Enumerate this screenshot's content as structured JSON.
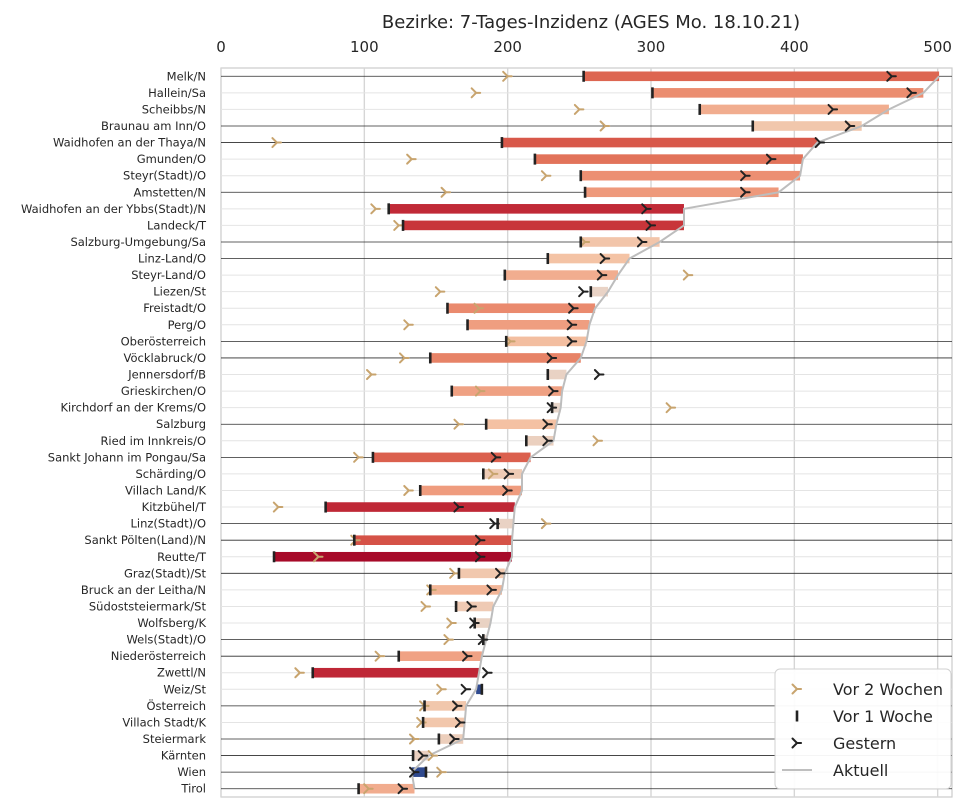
{
  "chart_data": {
    "type": "bar",
    "title": "Bezirke: 7-Tages-Inzidenz (AGES Mo. 18.10.21)",
    "xlim": [
      0,
      510
    ],
    "xticks": [
      0,
      100,
      200,
      300,
      400,
      500
    ],
    "grid": true,
    "legend_position": "bottom-right",
    "legend": [
      {
        "key": "two_weeks",
        "label": "Vor 2 Wochen",
        "color": "#c8a46e"
      },
      {
        "key": "one_week",
        "label": "Vor 1 Woche",
        "color": "#222222"
      },
      {
        "key": "yesterday",
        "label": "Gestern",
        "color": "#222222"
      },
      {
        "key": "current",
        "label": "Aktuell",
        "color": "#bfbfbf"
      }
    ],
    "rows": [
      {
        "name": "Melk/N",
        "current": 501,
        "one_week": 253,
        "yesterday": 468,
        "two_weeks": 200,
        "sep": true
      },
      {
        "name": "Hallein/Sa",
        "current": 490,
        "one_week": 301,
        "yesterday": 482,
        "two_weeks": 178,
        "sep": false
      },
      {
        "name": "Scheibbs/N",
        "current": 466,
        "one_week": 334,
        "yesterday": 427,
        "two_weeks": 250,
        "sep": false
      },
      {
        "name": "Braunau am Inn/O",
        "current": 447,
        "one_week": 371,
        "yesterday": 439,
        "two_weeks": 268,
        "sep": true
      },
      {
        "name": "Waidhofen an der Thaya/N",
        "current": 416,
        "one_week": 196,
        "yesterday": 418,
        "two_weeks": 39,
        "sep": true
      },
      {
        "name": "Gmunden/O",
        "current": 406,
        "one_week": 219,
        "yesterday": 384,
        "two_weeks": 133,
        "sep": false
      },
      {
        "name": "Steyr(Stadt)/O",
        "current": 404,
        "one_week": 251,
        "yesterday": 366,
        "two_weeks": 227,
        "sep": false
      },
      {
        "name": "Amstetten/N",
        "current": 389,
        "one_week": 254,
        "yesterday": 366,
        "two_weeks": 157,
        "sep": true
      },
      {
        "name": "Waidhofen an der Ybbs(Stadt)/N",
        "current": 323,
        "one_week": 117,
        "yesterday": 297,
        "two_weeks": 108,
        "sep": false
      },
      {
        "name": "Landeck/T",
        "current": 323,
        "one_week": 127,
        "yesterday": 300,
        "two_weeks": 124,
        "sep": false
      },
      {
        "name": "Salzburg-Umgebung/Sa",
        "current": 306,
        "one_week": 251,
        "yesterday": 294,
        "two_weeks": 254,
        "sep": true
      },
      {
        "name": "Linz-Land/O",
        "current": 285,
        "one_week": 228,
        "yesterday": 268,
        "two_weeks": 268,
        "sep": true
      },
      {
        "name": "Steyr-Land/O",
        "current": 277,
        "one_week": 198,
        "yesterday": 266,
        "two_weeks": 326,
        "sep": false
      },
      {
        "name": "Liezen/St",
        "current": 270,
        "one_week": 258,
        "yesterday": 253,
        "two_weeks": 153,
        "sep": false
      },
      {
        "name": "Freistadt/O",
        "current": 261,
        "one_week": 158,
        "yesterday": 246,
        "two_weeks": 180,
        "sep": false
      },
      {
        "name": "Perg/O",
        "current": 257,
        "one_week": 172,
        "yesterday": 245,
        "two_weeks": 131,
        "sep": false
      },
      {
        "name": "Oberösterreich",
        "current": 255,
        "one_week": 199,
        "yesterday": 245,
        "two_weeks": 202,
        "sep": true
      },
      {
        "name": "Vöcklabruck/O",
        "current": 251,
        "one_week": 146,
        "yesterday": 231,
        "two_weeks": 128,
        "sep": true
      },
      {
        "name": "Jennersdorf/B",
        "current": 241,
        "one_week": 228,
        "yesterday": 264,
        "two_weeks": 105,
        "sep": false
      },
      {
        "name": "Grieskirchen/O",
        "current": 238,
        "one_week": 161,
        "yesterday": 232,
        "two_weeks": 181,
        "sep": false
      },
      {
        "name": "Kirchdorf an der Krems/O",
        "current": 237,
        "one_week": 231,
        "yesterday": 231,
        "two_weeks": 314,
        "sep": false
      },
      {
        "name": "Salzburg",
        "current": 234,
        "one_week": 185,
        "yesterday": 228,
        "two_weeks": 166,
        "sep": true
      },
      {
        "name": "Ried im Innkreis/O",
        "current": 232,
        "one_week": 213,
        "yesterday": 228,
        "two_weeks": 263,
        "sep": false
      },
      {
        "name": "Sankt Johann im Pongau/Sa",
        "current": 216,
        "one_week": 106,
        "yesterday": 192,
        "two_weeks": 96,
        "sep": true
      },
      {
        "name": "Schärding/O",
        "current": 210,
        "one_week": 183,
        "yesterday": 201,
        "two_weeks": 190,
        "sep": false
      },
      {
        "name": "Villach Land/K",
        "current": 210,
        "one_week": 139,
        "yesterday": 200,
        "two_weeks": 131,
        "sep": false
      },
      {
        "name": "Kitzbühel/T",
        "current": 205,
        "one_week": 73,
        "yesterday": 166,
        "two_weeks": 40,
        "sep": false
      },
      {
        "name": "Linz(Stadt)/O",
        "current": 204,
        "one_week": 193,
        "yesterday": 191,
        "two_weeks": 227,
        "sep": true
      },
      {
        "name": "Sankt Pölten(Land)/N",
        "current": 203,
        "one_week": 93,
        "yesterday": 181,
        "two_weeks": 94,
        "sep": true
      },
      {
        "name": "Reutte/T",
        "current": 203,
        "one_week": 37,
        "yesterday": 181,
        "two_weeks": 68,
        "sep": false
      },
      {
        "name": "Graz(Stadt)/St",
        "current": 198,
        "one_week": 166,
        "yesterday": 195,
        "two_weeks": 163,
        "sep": true
      },
      {
        "name": "Bruck an der Leitha/N",
        "current": 196,
        "one_week": 146,
        "yesterday": 189,
        "two_weeks": 147,
        "sep": false
      },
      {
        "name": "Südoststeiermark/St",
        "current": 190,
        "one_week": 164,
        "yesterday": 175,
        "two_weeks": 143,
        "sep": false
      },
      {
        "name": "Wolfsberg/K",
        "current": 188,
        "one_week": 177,
        "yesterday": 177,
        "two_weeks": 161,
        "sep": false
      },
      {
        "name": "Wels(Stadt)/O",
        "current": 185,
        "one_week": 183,
        "yesterday": 183,
        "two_weeks": 159,
        "sep": true
      },
      {
        "name": "Niederösterreich",
        "current": 182,
        "one_week": 124,
        "yesterday": 172,
        "two_weeks": 111,
        "sep": true
      },
      {
        "name": "Zwettl/N",
        "current": 180,
        "one_week": 64,
        "yesterday": 186,
        "two_weeks": 55,
        "sep": false
      },
      {
        "name": "Weiz/St",
        "current": 178,
        "one_week": 182,
        "yesterday": 171,
        "two_weeks": 154,
        "sep": false
      },
      {
        "name": "Österreich",
        "current": 171,
        "one_week": 142,
        "yesterday": 165,
        "two_weeks": 142,
        "sep": true
      },
      {
        "name": "Villach Stadt/K",
        "current": 170,
        "one_week": 141,
        "yesterday": 167,
        "two_weeks": 140,
        "sep": false
      },
      {
        "name": "Steiermark",
        "current": 169,
        "one_week": 152,
        "yesterday": 163,
        "two_weeks": 135,
        "sep": true
      },
      {
        "name": "Kärnten",
        "current": 145,
        "one_week": 134,
        "yesterday": 141,
        "two_weeks": 148,
        "sep": true
      },
      {
        "name": "Wien",
        "current": 133,
        "one_week": 143,
        "yesterday": 135,
        "two_weeks": 154,
        "sep": true
      },
      {
        "name": "Tirol",
        "current": 135,
        "one_week": 96,
        "yesterday": 127,
        "two_weeks": 103,
        "sep": true
      }
    ]
  }
}
